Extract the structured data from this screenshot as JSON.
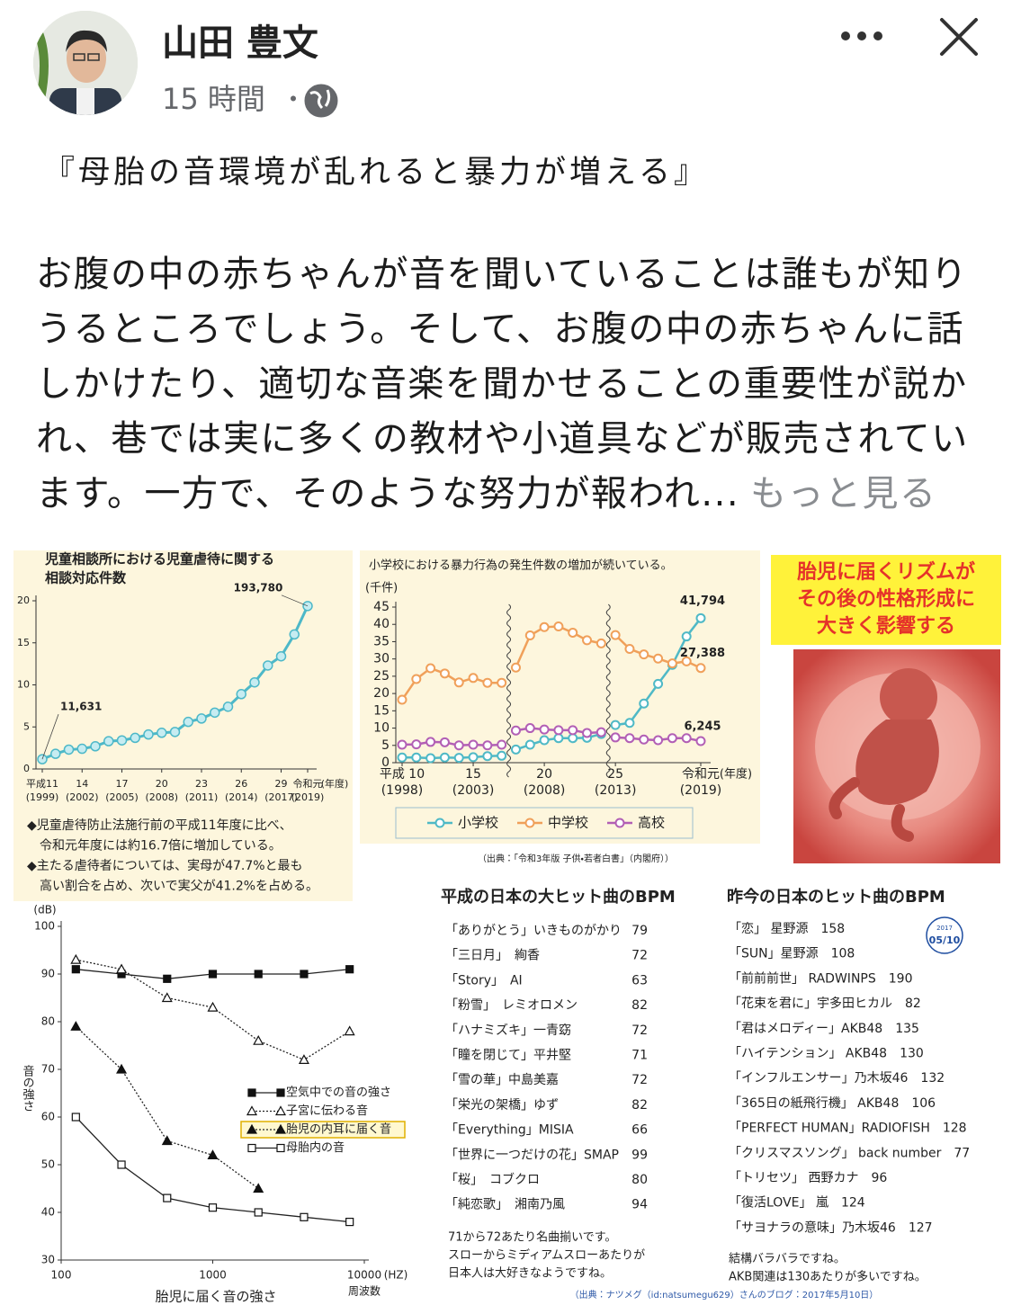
{
  "post": {
    "author": "山田 豊文",
    "time": "15 時間",
    "separator": "・",
    "title": "『母胎の音環境が乱れると暴力が増える』",
    "body": "お腹の中の赤ちゃんが音を聞いていることは誰もが知りうるところでしょう。そして、お腹の中の赤ちゃんに話しかけたり、適切な音楽を聞かせることの重要性が説かれ、巷では実に多くの教材や小道具などが販売されています。一方で、そのような努力が報われ...",
    "more": "もっと見る"
  },
  "chart_data": [
    {
      "type": "line",
      "title": [
        "児童相談所における児童虐待に関する",
        "相談対応件数"
      ],
      "color": "#4db8c8",
      "x": [
        1999,
        2000,
        2001,
        2002,
        2003,
        2004,
        2005,
        2006,
        2007,
        2008,
        2009,
        2010,
        2011,
        2012,
        2013,
        2014,
        2015,
        2016,
        2017,
        2018,
        2019
      ],
      "values": [
        1.1631,
        1.8,
        2.3,
        2.4,
        2.7,
        3.3,
        3.4,
        3.7,
        4.1,
        4.3,
        4.4,
        5.6,
        6.0,
        6.7,
        7.4,
        8.9,
        10.3,
        12.3,
        13.4,
        16.0,
        19.378
      ],
      "value_labels": [
        "11,631",
        null,
        null,
        null,
        null,
        null,
        null,
        null,
        null,
        null,
        null,
        null,
        null,
        null,
        null,
        null,
        null,
        null,
        null,
        null,
        "193,780"
      ],
      "xlim": [
        1999,
        2019
      ],
      "ylim": [
        0,
        20
      ],
      "yticks": [
        0,
        5,
        10,
        15,
        20
      ],
      "xticks": [
        {
          "value": 1999,
          "label": "平成11",
          "sub": "(1999)"
        },
        {
          "value": 2002,
          "label": "14",
          "sub": "(2002)"
        },
        {
          "value": 2005,
          "label": "17",
          "sub": "(2005)"
        },
        {
          "value": 2008,
          "label": "20",
          "sub": "(2008)"
        },
        {
          "value": 2011,
          "label": "23",
          "sub": "(2011)"
        },
        {
          "value": 2014,
          "label": "26",
          "sub": "(2014)"
        },
        {
          "value": 2017,
          "label": "29",
          "sub": "(2017)"
        },
        {
          "value": 2019,
          "label": "令和元",
          "sub": "(2019)"
        }
      ],
      "x_unit": "(年度)",
      "notes": [
        "◆児童虐待防止法施行前の平成11年度に比べ、",
        "　令和元年度には約16.7倍に増加している。",
        "◆主たる虐待者については、実母が47.7%と最も",
        "　高い割合を占め、次いで実父が41.2%を占める。"
      ]
    },
    {
      "type": "line",
      "title": "小学校における暴力行為の発生件数の増加が続いている。",
      "y_unit": "(千件)",
      "x": [
        1998,
        1999,
        2000,
        2001,
        2002,
        2003,
        2004,
        2005,
        2006,
        2007,
        2008,
        2009,
        2010,
        2011,
        2012,
        2013,
        2014,
        2015,
        2016,
        2017,
        2018,
        2019
      ],
      "axis_breaks": [
        2005.5,
        2012.5
      ],
      "series": [
        {
          "name": "小学校",
          "color": "#4fb9c6",
          "values": [
            1.5,
            1.5,
            1.3,
            1.5,
            1.4,
            1.6,
            1.9,
            2.0,
            3.8,
            5.2,
            6.5,
            7.1,
            7.1,
            7.2,
            8.3,
            10.9,
            11.5,
            17.1,
            22.8,
            28.3,
            36.5,
            41.794
          ],
          "value_labels": [
            null,
            null,
            null,
            null,
            null,
            null,
            null,
            null,
            null,
            null,
            null,
            null,
            null,
            null,
            null,
            null,
            null,
            null,
            null,
            null,
            null,
            "41,794"
          ]
        },
        {
          "name": "中学校",
          "color": "#f0a05a",
          "values": [
            18.2,
            24.2,
            27.3,
            25.8,
            23.2,
            24.5,
            23.1,
            23.1,
            27.5,
            36.8,
            39.2,
            39.4,
            37.6,
            35.4,
            34.5,
            36.9,
            32.9,
            31.3,
            30.1,
            28.7,
            29.3,
            27.388
          ],
          "value_labels": [
            null,
            null,
            null,
            null,
            null,
            null,
            null,
            null,
            null,
            null,
            null,
            null,
            null,
            null,
            null,
            null,
            null,
            null,
            null,
            null,
            null,
            "27,388"
          ]
        },
        {
          "name": "高校",
          "color": "#b25fb5",
          "values": [
            5.2,
            5.3,
            6.0,
            5.9,
            5.0,
            5.2,
            5.0,
            5.2,
            9.3,
            10.0,
            9.6,
            9.4,
            9.4,
            8.6,
            8.8,
            7.3,
            7.1,
            6.7,
            6.5,
            7.1,
            7.1,
            6.245
          ],
          "value_labels": [
            null,
            null,
            null,
            null,
            null,
            null,
            null,
            null,
            null,
            null,
            null,
            null,
            null,
            null,
            null,
            null,
            null,
            null,
            null,
            null,
            null,
            "6,245"
          ]
        }
      ],
      "xlim": [
        1998,
        2019
      ],
      "ylim": [
        0,
        45
      ],
      "yticks": [
        0,
        5,
        10,
        15,
        20,
        25,
        30,
        35,
        40,
        45
      ],
      "xticks": [
        {
          "value": 1998,
          "label": "平成 10",
          "sub": "(1998)"
        },
        {
          "value": 2003,
          "label": "15",
          "sub": "(2003)"
        },
        {
          "value": 2008,
          "label": "20",
          "sub": "(2008)"
        },
        {
          "value": 2013,
          "label": "25",
          "sub": "(2013)"
        },
        {
          "value": 2019,
          "label": "令和元",
          "sub": "(2019)"
        }
      ],
      "x_unit": "(年度)",
      "source": "（出典：「令和3年版 子供・若者白書」（内閣府））"
    },
    {
      "type": "line",
      "y_unit": "(dB)",
      "ylabel": "音の強さ",
      "xlabel": "胎児に届く音の強さ",
      "xlabel2": "周波数",
      "x_unit": "(HZ)",
      "log_x": true,
      "xlim": [
        100,
        10000
      ],
      "xticks": [
        100,
        1000,
        10000
      ],
      "ylim": [
        30,
        100
      ],
      "yticks": [
        30,
        40,
        50,
        60,
        70,
        80,
        90,
        100
      ],
      "x": [
        125,
        250,
        500,
        1000,
        2000,
        4000,
        8000
      ],
      "series": [
        {
          "name": "空気中での音の強さ",
          "marker": "square-filled",
          "dash": "solid",
          "values": [
            91,
            90,
            89,
            90,
            90,
            90,
            91
          ]
        },
        {
          "name": "子宮に伝わる音",
          "marker": "triangle-open",
          "dash": "dotted",
          "values": [
            93,
            91,
            85,
            83,
            76,
            72,
            78
          ]
        },
        {
          "name": "胎児の内耳に届く音",
          "marker": "triangle-filled",
          "dash": "dotted",
          "highlight": true,
          "values": [
            79,
            70,
            55,
            52,
            45,
            null,
            null
          ]
        },
        {
          "name": "母胎内の音",
          "marker": "square-open",
          "dash": "solid",
          "values": [
            60,
            50,
            43,
            41,
            40,
            39,
            38
          ]
        }
      ]
    }
  ],
  "rhythm_panel": {
    "lines": [
      "胎児に届くリズムが",
      "その後の性格形成に",
      "大きく影響する"
    ]
  },
  "bpm": {
    "left": {
      "title": "平成の日本の大ヒット曲のBPM",
      "rows": [
        [
          "「ありがとう」いきものがかり",
          79
        ],
        [
          "「三日月」　絢香",
          72
        ],
        [
          "「Story」　AI",
          63
        ],
        [
          "「粉雪」　レミオロメン",
          82
        ],
        [
          "「ハナミズキ」一青窈",
          72
        ],
        [
          "「瞳を閉じて」平井堅",
          71
        ],
        [
          "「雪の華」中島美嘉",
          72
        ],
        [
          "「栄光の架橋」ゆず",
          82
        ],
        [
          "「Everything」MISIA",
          66
        ],
        [
          "「世界に一つだけの花」SMAP",
          99
        ],
        [
          "「桜」　コブクロ",
          80
        ],
        [
          "「純恋歌」　湘南乃風",
          94
        ]
      ],
      "notes": [
        "71から72あたり名曲揃いです。",
        "スローからミディアムスローあたりが",
        "日本人は大好きなようですね。"
      ]
    },
    "right": {
      "title": "昨今の日本のヒット曲のBPM",
      "rows": [
        [
          "「恋」 星野源",
          158
        ],
        [
          "「SUN」星野源",
          108
        ],
        [
          "「前前前世」 RADWINPS",
          190
        ],
        [
          "「花束を君に」宇多田ヒカル",
          82
        ],
        [
          "「君はメロディー」AKB48",
          135
        ],
        [
          "「ハイテンション」 AKB48",
          130
        ],
        [
          "「インフルエンサー」乃木坂46",
          132
        ],
        [
          "「365日の紙飛行機」 AKB48",
          106
        ],
        [
          "「PERFECT HUMAN」RADIOFISH",
          128
        ],
        [
          "「クリスマスソング」 back number",
          77
        ],
        [
          "「トリセツ」 西野カナ",
          96
        ],
        [
          "「復活LOVE」 嵐",
          124
        ],
        [
          "「サヨナラの意味」乃木坂46",
          127
        ]
      ],
      "notes": [
        "結構バラバラですね。",
        "AKB関連は130あたりが多いですね。"
      ]
    },
    "stamp": [
      "2017",
      "05/10"
    ],
    "source": "（出典：ナツメグ（id:natsumegu629）さんのブログ：2017年5月10日）"
  }
}
